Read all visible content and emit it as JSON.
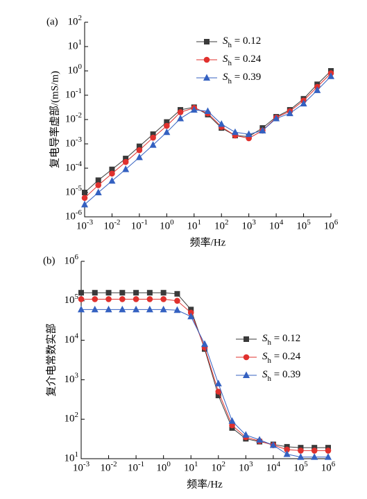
{
  "chart_data": [
    {
      "type": "line",
      "panel_label": "(a)",
      "x_label": "频率/Hz",
      "y_label": "复电导率虚部/(mS/m)",
      "log_x": true,
      "log_y": true,
      "legend": "upper right",
      "xlim": [
        0.001,
        1000000
      ],
      "ylim": [
        1e-06,
        100
      ],
      "xticks": [
        {
          "value": 0.001,
          "label": "10^-3"
        },
        {
          "value": 0.01,
          "label": "10^-2"
        },
        {
          "value": 0.1,
          "label": "10^-1"
        },
        {
          "value": 1,
          "label": "10^0"
        },
        {
          "value": 10,
          "label": "10^1"
        },
        {
          "value": 100,
          "label": "10^2"
        },
        {
          "value": 1000,
          "label": "10^3"
        },
        {
          "value": 10000,
          "label": "10^4"
        },
        {
          "value": 100000,
          "label": "10^5"
        },
        {
          "value": 1000000,
          "label": "10^6"
        }
      ],
      "yticks": [
        {
          "value": 1e-06,
          "label": "10^-6"
        },
        {
          "value": 1e-05,
          "label": "10^-5"
        },
        {
          "value": 0.0001,
          "label": "10^-4"
        },
        {
          "value": 0.001,
          "label": "10^-3"
        },
        {
          "value": 0.01,
          "label": "10^-2"
        },
        {
          "value": 0.1,
          "label": "10^-1"
        },
        {
          "value": 1,
          "label": "10^0"
        },
        {
          "value": 10,
          "label": "10^1"
        },
        {
          "value": 100,
          "label": "10^2"
        }
      ],
      "x": [
        0.001,
        0.00316,
        0.01,
        0.0316,
        0.1,
        0.316,
        1,
        3.16,
        10,
        31.6,
        100,
        316,
        1000,
        3160,
        10000,
        31600,
        100000,
        316000,
        1000000
      ],
      "series": [
        {
          "name": "S_h = 0.12",
          "color": "#3a3a3a",
          "marker": "square",
          "values": [
            1e-05,
            3.2e-05,
            8.9e-05,
            0.00025,
            0.00079,
            0.0025,
            0.0079,
            0.025,
            0.032,
            0.016,
            0.0045,
            0.0022,
            0.002,
            0.0045,
            0.013,
            0.025,
            0.071,
            0.28,
            1
          ]
        },
        {
          "name": "S_h = 0.24",
          "color": "#e0312e",
          "marker": "circle",
          "values": [
            6e-06,
            2e-05,
            6e-05,
            0.00018,
            0.00055,
            0.0018,
            0.0055,
            0.02,
            0.03,
            0.018,
            0.005,
            0.0022,
            0.0017,
            0.0035,
            0.012,
            0.022,
            0.06,
            0.22,
            0.8
          ]
        },
        {
          "name": "S_h = 0.39",
          "color": "#3461c1",
          "marker": "triangle",
          "values": [
            3.2e-06,
            1e-05,
            3e-05,
            9e-05,
            0.00028,
            0.0009,
            0.003,
            0.011,
            0.025,
            0.022,
            0.0065,
            0.003,
            0.0025,
            0.0035,
            0.011,
            0.018,
            0.045,
            0.16,
            0.6
          ]
        }
      ]
    },
    {
      "type": "line",
      "panel_label": "(b)",
      "x_label": "频率/Hz",
      "y_label": "复介电常数实部",
      "log_x": true,
      "log_y": true,
      "legend": "center right",
      "xlim": [
        0.001,
        1000000
      ],
      "ylim": [
        10,
        1000000
      ],
      "xticks": [
        {
          "value": 0.001,
          "label": "10^-3"
        },
        {
          "value": 0.01,
          "label": "10^-2"
        },
        {
          "value": 0.1,
          "label": "10^-1"
        },
        {
          "value": 1,
          "label": "10^0"
        },
        {
          "value": 10,
          "label": "10^1"
        },
        {
          "value": 100,
          "label": "10^2"
        },
        {
          "value": 1000,
          "label": "10^3"
        },
        {
          "value": 10000,
          "label": "10^4"
        },
        {
          "value": 100000,
          "label": "10^5"
        },
        {
          "value": 1000000,
          "label": "10^6"
        }
      ],
      "yticks": [
        {
          "value": 10,
          "label": "10^1"
        },
        {
          "value": 100,
          "label": "10^2"
        },
        {
          "value": 1000,
          "label": "10^3"
        },
        {
          "value": 10000,
          "label": "10^4"
        },
        {
          "value": 100000,
          "label": "10^5"
        },
        {
          "value": 1000000,
          "label": "10^6"
        }
      ],
      "x": [
        0.001,
        0.00316,
        0.01,
        0.0316,
        0.1,
        0.316,
        1,
        3.16,
        10,
        31.6,
        100,
        316,
        1000,
        3160,
        10000,
        31600,
        100000,
        316000,
        1000000
      ],
      "series": [
        {
          "name": "S_h = 0.12",
          "color": "#3a3a3a",
          "marker": "square",
          "values": [
            160000,
            160000,
            160000,
            160000,
            160000,
            160000,
            160000,
            150000,
            60000,
            6000,
            400,
            60,
            32,
            27,
            23,
            20,
            19,
            19,
            19
          ]
        },
        {
          "name": "S_h = 0.24",
          "color": "#e0312e",
          "marker": "circle",
          "values": [
            110000,
            110000,
            110000,
            110000,
            110000,
            110000,
            110000,
            100000,
            50000,
            6500,
            500,
            70,
            35,
            28,
            22,
            17,
            16,
            16,
            16
          ]
        },
        {
          "name": "S_h = 0.39",
          "color": "#3461c1",
          "marker": "triangle",
          "values": [
            60000,
            60000,
            60000,
            60000,
            60000,
            60000,
            60000,
            58000,
            40000,
            8000,
            800,
            90,
            40,
            30,
            22,
            13,
            11,
            11,
            11
          ]
        }
      ]
    }
  ]
}
